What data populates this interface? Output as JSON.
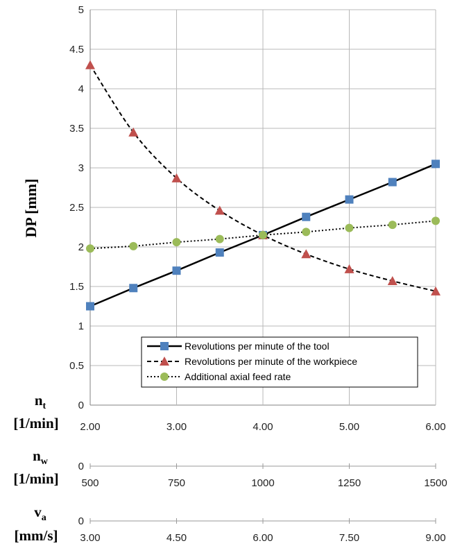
{
  "chart_data": {
    "type": "line",
    "ylabel": "DP [mm]",
    "ylim": [
      0,
      5
    ],
    "yticks": [
      "0",
      "0.5",
      "1",
      "1.5",
      "2",
      "2.5",
      "3",
      "3.5",
      "4",
      "4.5",
      "5"
    ],
    "grid": true,
    "legend_position": "bottom-right",
    "x": [
      2.0,
      2.5,
      3.0,
      3.5,
      4.0,
      4.5,
      5.0,
      5.5,
      6.0
    ],
    "xlim": [
      2,
      6
    ],
    "series": [
      {
        "name": "Revolutions per minute of the tool",
        "values": [
          1.25,
          1.48,
          1.7,
          1.93,
          2.15,
          2.38,
          2.6,
          2.82,
          3.05
        ],
        "color": "#4f81bd",
        "marker": "square",
        "line": "solid"
      },
      {
        "name": "Revolutions per minute of the workpiece",
        "values": [
          4.3,
          3.45,
          2.87,
          2.46,
          2.15,
          1.91,
          1.72,
          1.57,
          1.44
        ],
        "color": "#c0504d",
        "marker": "triangle",
        "line": "dashed"
      },
      {
        "name": "Additional axial feed rate",
        "values": [
          1.98,
          2.01,
          2.06,
          2.1,
          2.15,
          2.19,
          2.24,
          2.28,
          2.33
        ],
        "color": "#9bbb59",
        "marker": "circle",
        "line": "dotted"
      }
    ],
    "x_axes": [
      {
        "title_main": "n",
        "title_sub": "t",
        "unit": "[1/min]",
        "ticks": [
          "2.00",
          "3.00",
          "4.00",
          "5.00",
          "6.00"
        ]
      },
      {
        "title_main": "n",
        "title_sub": "w",
        "unit": "[1/min]",
        "zero_label": "0",
        "ticks": [
          "500",
          "750",
          "1000",
          "1250",
          "1500"
        ]
      },
      {
        "title_main": "v",
        "title_sub": "a",
        "unit": "[mm/s]",
        "zero_label": "0",
        "ticks": [
          "3.00",
          "4.50",
          "6.00",
          "7.50",
          "9.00"
        ]
      }
    ]
  }
}
